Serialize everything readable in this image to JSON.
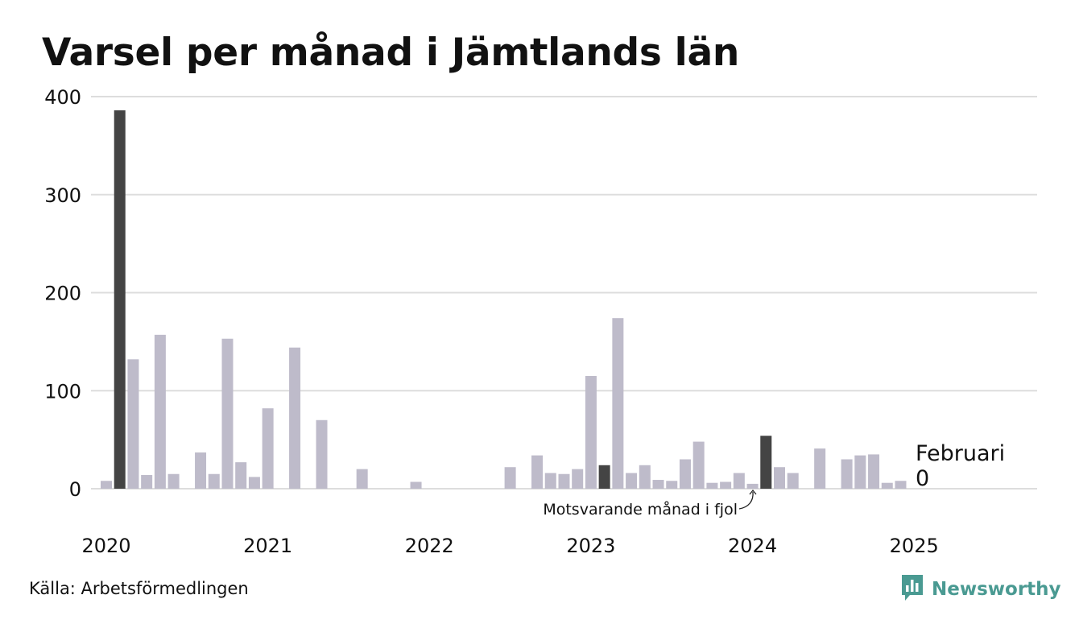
{
  "title": "Varsel per månad i Jämtlands län",
  "source": "Källa: Arbetsförmedlingen",
  "brand": {
    "name": "Newsworthy",
    "icon": "newsworthy-logo-icon",
    "color": "#4a9a92"
  },
  "colors": {
    "bar": "#bebbca",
    "highlight": "#444444",
    "grid": "#dddddd"
  },
  "annotation": "Motsvarande månad i fjol",
  "latest": {
    "month": "Februari",
    "value": "0"
  },
  "chart_data": {
    "type": "bar",
    "title": "Varsel per månad i Jämtlands län",
    "xlabel": "",
    "ylabel": "",
    "ylim": [
      0,
      400
    ],
    "yticks": [
      0,
      100,
      200,
      300,
      400
    ],
    "xticks": [
      "2020",
      "2021",
      "2022",
      "2023",
      "2024",
      "2025"
    ],
    "grid": true,
    "categories": [
      "2020-01",
      "2020-02",
      "2020-03",
      "2020-04",
      "2020-05",
      "2020-06",
      "2020-07",
      "2020-08",
      "2020-09",
      "2020-10",
      "2020-11",
      "2020-12",
      "2021-01",
      "2021-02",
      "2021-03",
      "2021-04",
      "2021-05",
      "2021-06",
      "2021-07",
      "2021-08",
      "2021-09",
      "2021-10",
      "2021-11",
      "2021-12",
      "2022-01",
      "2022-02",
      "2022-03",
      "2022-04",
      "2022-05",
      "2022-06",
      "2022-07",
      "2022-08",
      "2022-09",
      "2022-10",
      "2022-11",
      "2022-12",
      "2023-01",
      "2023-02",
      "2023-03",
      "2023-04",
      "2023-05",
      "2023-06",
      "2023-07",
      "2023-08",
      "2023-09",
      "2023-10",
      "2023-11",
      "2023-12",
      "2024-01",
      "2024-02",
      "2024-03",
      "2024-04",
      "2024-05",
      "2024-06",
      "2024-07",
      "2024-08",
      "2024-09",
      "2024-10",
      "2024-11",
      "2024-12",
      "2025-01",
      "2025-02"
    ],
    "values": [
      8,
      386,
      132,
      14,
      157,
      15,
      0,
      37,
      15,
      153,
      27,
      12,
      82,
      0,
      144,
      0,
      70,
      0,
      0,
      20,
      0,
      0,
      0,
      7,
      0,
      0,
      0,
      0,
      0,
      0,
      22,
      0,
      34,
      16,
      15,
      20,
      115,
      24,
      174,
      16,
      24,
      9,
      8,
      30,
      48,
      6,
      7,
      16,
      5,
      54,
      22,
      16,
      0,
      41,
      0,
      30,
      34,
      35,
      6,
      8,
      0,
      0
    ],
    "highlighted": [
      "2020-02",
      "2021-02",
      "2023-02",
      "2024-02"
    ]
  }
}
